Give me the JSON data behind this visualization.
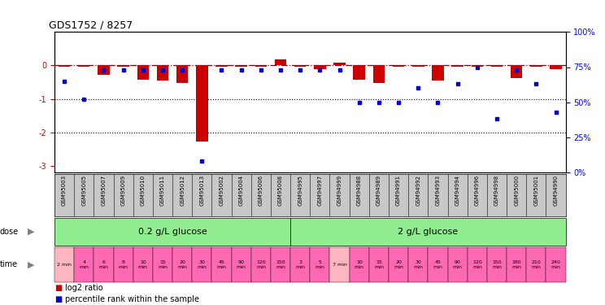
{
  "title": "GDS1752 / 8257",
  "samples": [
    "GSM95003",
    "GSM95005",
    "GSM95007",
    "GSM95009",
    "GSM95010",
    "GSM95011",
    "GSM95012",
    "GSM95013",
    "GSM95002",
    "GSM95004",
    "GSM95006",
    "GSM95008",
    "GSM94995",
    "GSM94997",
    "GSM94999",
    "GSM94988",
    "GSM94989",
    "GSM94991",
    "GSM94992",
    "GSM94993",
    "GSM94994",
    "GSM94996",
    "GSM94998",
    "GSM95000",
    "GSM95001",
    "GSM94990"
  ],
  "log2_ratio": [
    -0.05,
    -0.05,
    -0.28,
    -0.05,
    -0.42,
    -0.45,
    -0.52,
    -2.28,
    -0.05,
    -0.05,
    -0.05,
    0.18,
    -0.05,
    -0.1,
    0.08,
    -0.42,
    -0.52,
    -0.05,
    -0.05,
    -0.45,
    -0.05,
    -0.05,
    -0.05,
    -0.38,
    -0.05,
    -0.12
  ],
  "pct_rank": [
    65,
    52,
    73,
    73,
    73,
    73,
    73,
    8,
    73,
    73,
    73,
    73,
    73,
    73,
    73,
    50,
    50,
    50,
    60,
    50,
    63,
    75,
    38,
    73,
    63,
    43
  ],
  "bar_color": "#CC0000",
  "dot_color": "#0000CC",
  "ylim_left": [
    -3.2,
    1.0
  ],
  "ylim_right": [
    0,
    100
  ],
  "yticks_left": [
    0,
    -1,
    -2,
    -3
  ],
  "yticks_right": [
    0,
    25,
    50,
    75,
    100
  ],
  "dose_labels": [
    "0.2 g/L glucose",
    "2 g/L glucose"
  ],
  "dose_color": "#90EE90",
  "dose_split": 12,
  "time_labels": [
    "2 min",
    "4\nmin",
    "6\nmin",
    "8\nmin",
    "10\nmin",
    "15\nmin",
    "20\nmin",
    "30\nmin",
    "45\nmin",
    "90\nmin",
    "120\nmin",
    "150\nmin",
    "3\nmin",
    "5\nmin",
    "7 min",
    "10\nmin",
    "15\nmin",
    "20\nmin",
    "30\nmin",
    "45\nmin",
    "90\nmin",
    "120\nmin",
    "150\nmin",
    "180\nmin",
    "210\nmin",
    "240\nmin"
  ],
  "time_color_light": "#FFB6C1",
  "time_color_dark": "#FF69B4",
  "sample_bg": "#C8C8C8",
  "legend_bar_label": "log2 ratio",
  "legend_dot_label": "percentile rank within the sample"
}
